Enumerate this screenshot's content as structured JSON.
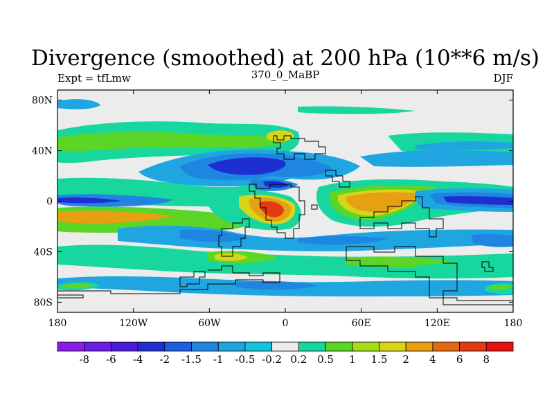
{
  "title": "Divergence (smoothed) at 200 hPa (10**6 m/s)",
  "left_label": "Expt = tfLmw",
  "center_label": "370_0_MaBP",
  "right_label": "DJF",
  "lat_ticks": [
    {
      "label": "80N",
      "lat": 80
    },
    {
      "label": "40N",
      "lat": 40
    },
    {
      "label": "0",
      "lat": 0
    },
    {
      "label": "40S",
      "lat": -40
    },
    {
      "label": "80S",
      "lat": -80
    }
  ],
  "lon_ticks": [
    {
      "label": "180",
      "lon": -180
    },
    {
      "label": "120W",
      "lon": -120
    },
    {
      "label": "60W",
      "lon": -60
    },
    {
      "label": "0",
      "lon": 0
    },
    {
      "label": "60E",
      "lon": 60
    },
    {
      "label": "120E",
      "lon": 120
    },
    {
      "label": "180",
      "lon": 180
    }
  ],
  "colorbar": {
    "colors": [
      "#8a1ce8",
      "#6a1de0",
      "#4b1cd6",
      "#1f2ed0",
      "#1c5fe0",
      "#1e86e0",
      "#1fa6e0",
      "#14c2dc",
      "#ececec",
      "#17d69e",
      "#5cd626",
      "#a6dc1a",
      "#d8d41a",
      "#e6a012",
      "#e36a14",
      "#e23a14",
      "#e81212"
    ],
    "labels": [
      "-8",
      "-6",
      "-4",
      "-2",
      "-1.5",
      "-1",
      "-0.5",
      "-0.2",
      "0.2",
      "0.5",
      "1",
      "1.5",
      "2",
      "4",
      "6",
      "8"
    ]
  },
  "colors": {
    "green": "#17d69e",
    "yellow_green": "#5cd626",
    "light_blue": "#1fa6e0",
    "blue": "#1e86e0",
    "dark_blue": "#1f2ed0",
    "orange": "#e6a012",
    "red": "#e23a14",
    "background": "#ececec"
  }
}
